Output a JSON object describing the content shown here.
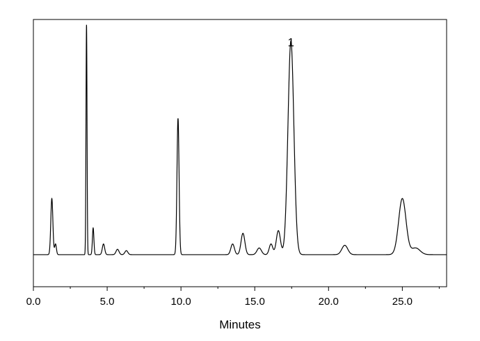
{
  "chart_data": {
    "type": "line",
    "title": "",
    "xlabel": "Minutes",
    "ylabel": "",
    "xlim": [
      0,
      28
    ],
    "ylim": [
      0,
      100
    ],
    "x_ticks": [
      0,
      5,
      10,
      15,
      20,
      25
    ],
    "x_tick_labels": [
      "0.0",
      "5.0",
      "10.0",
      "15.0",
      "20.0",
      "25.0"
    ],
    "grid": false,
    "line_color": "#000000",
    "baseline": 12,
    "peaks": [
      {
        "x": 1.25,
        "height": 21,
        "width": 0.07
      },
      {
        "x": 1.5,
        "height": 4,
        "width": 0.06
      },
      {
        "x": 3.6,
        "height": 86,
        "width": 0.035
      },
      {
        "x": 4.05,
        "height": 10,
        "width": 0.05
      },
      {
        "x": 4.75,
        "height": 4,
        "width": 0.08
      },
      {
        "x": 5.7,
        "height": 2,
        "width": 0.1
      },
      {
        "x": 6.3,
        "height": 1.5,
        "width": 0.1
      },
      {
        "x": 9.8,
        "height": 51,
        "width": 0.07
      },
      {
        "x": 13.5,
        "height": 4,
        "width": 0.12
      },
      {
        "x": 14.2,
        "height": 8,
        "width": 0.13
      },
      {
        "x": 15.3,
        "height": 2.5,
        "width": 0.15
      },
      {
        "x": 16.1,
        "height": 4,
        "width": 0.12
      },
      {
        "x": 16.6,
        "height": 9,
        "width": 0.14
      },
      {
        "x": 17.45,
        "height": 80,
        "width": 0.2
      },
      {
        "x": 21.1,
        "height": 3.5,
        "width": 0.2
      },
      {
        "x": 25.0,
        "height": 21,
        "width": 0.25
      },
      {
        "x": 25.9,
        "height": 2.5,
        "width": 0.3
      }
    ],
    "annotations": [
      {
        "text": "1",
        "x": 17.45,
        "y": 90
      }
    ]
  }
}
